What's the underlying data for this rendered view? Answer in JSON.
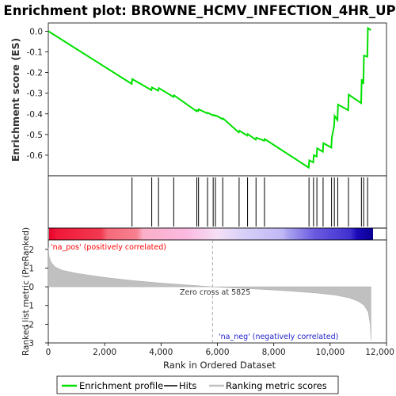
{
  "title": "Enrichment plot: BROWNE_HCMV_INFECTION_4HR_UP",
  "colors": {
    "es_line": "#00e000",
    "hit": "#000000",
    "metric_fill": "#c0c0c0",
    "pos_label": "#ff0000",
    "neg_label": "#0000cc",
    "zero_line": "#888888"
  },
  "chart_data": [
    {
      "type": "line",
      "name": "enrichment-profile",
      "ylabel": "Enrichment score (ES)",
      "xlim": [
        0,
        12000
      ],
      "ylim": [
        -0.7,
        0.04
      ],
      "yticks": [
        0.0,
        -0.1,
        -0.2,
        -0.3,
        -0.4,
        -0.5,
        -0.6
      ],
      "ytick_labels": [
        "0.0",
        "-0.1",
        "-0.2",
        "-0.3",
        "-0.4",
        "-0.5",
        "-0.6"
      ],
      "grid": false,
      "x": [
        0,
        2960,
        2980,
        3660,
        3680,
        3900,
        3920,
        4440,
        4460,
        5260,
        5280,
        5320,
        5340,
        5640,
        5660,
        5840,
        5860,
        5920,
        5940,
        6180,
        6200,
        6760,
        6780,
        7060,
        7080,
        7360,
        7380,
        7660,
        7680,
        9240,
        9260,
        9400,
        9420,
        9520,
        9540,
        9740,
        9760,
        10040,
        10060,
        10140,
        10160,
        10260,
        10280,
        10640,
        10660,
        11100,
        11120,
        11180,
        11200,
        11320,
        11340,
        11450
      ],
      "y": [
        0.0,
        -0.255,
        -0.232,
        -0.285,
        -0.272,
        -0.288,
        -0.275,
        -0.318,
        -0.31,
        -0.387,
        -0.382,
        -0.386,
        -0.378,
        -0.398,
        -0.395,
        -0.407,
        -0.405,
        -0.41,
        -0.407,
        -0.425,
        -0.422,
        -0.49,
        -0.482,
        -0.505,
        -0.498,
        -0.525,
        -0.515,
        -0.53,
        -0.522,
        -0.66,
        -0.625,
        -0.635,
        -0.6,
        -0.607,
        -0.567,
        -0.583,
        -0.542,
        -0.563,
        -0.515,
        -0.46,
        -0.41,
        -0.43,
        -0.355,
        -0.382,
        -0.307,
        -0.348,
        -0.233,
        -0.255,
        -0.118,
        -0.123,
        0.015,
        0.005
      ]
    },
    {
      "type": "scatter",
      "name": "hits",
      "x": [
        2970,
        3670,
        3910,
        4450,
        5270,
        5330,
        5650,
        5850,
        5930,
        6190,
        6770,
        7070,
        7370,
        7670,
        9250,
        9410,
        9530,
        9750,
        10050,
        10150,
        10270,
        10650,
        11110,
        11190,
        11330
      ]
    },
    {
      "type": "area",
      "name": "ranking-metric",
      "ylabel": "Ranked list metric (PreRanked)",
      "xlabel": "Rank in Ordered Dataset",
      "xlim": [
        0,
        12000
      ],
      "ylim": [
        -3,
        2.5
      ],
      "xticks": [
        0,
        2000,
        4000,
        6000,
        8000,
        10000,
        12000
      ],
      "xtick_labels": [
        "0",
        "2,000",
        "4,000",
        "6,000",
        "8,000",
        "10,000",
        "12,000"
      ],
      "yticks": [
        2,
        1,
        0,
        -1,
        -2,
        -3
      ],
      "ytick_labels": [
        "2",
        "1",
        "0",
        "-1",
        "-2",
        "-3"
      ],
      "x": [
        0,
        30,
        100,
        250,
        500,
        1000,
        2000,
        3000,
        4000,
        5000,
        5825,
        6500,
        7500,
        8500,
        9500,
        10200,
        10700,
        11000,
        11200,
        11350,
        11420,
        11450
      ],
      "y": [
        2.1,
        1.6,
        1.3,
        1.05,
        0.88,
        0.72,
        0.5,
        0.33,
        0.2,
        0.09,
        0.0,
        -0.06,
        -0.13,
        -0.22,
        -0.33,
        -0.45,
        -0.6,
        -0.78,
        -0.98,
        -1.35,
        -2.0,
        -2.85
      ],
      "zero_cross": 5825,
      "annotations": {
        "zero_cross": "Zero cross at 5825",
        "pos": "'na_pos' (positively correlated)",
        "neg": "'na_neg' (negatively correlated)"
      }
    }
  ],
  "legend": {
    "placement": "bottom",
    "items": [
      {
        "label": "Enrichment profile",
        "color": "#00e000"
      },
      {
        "label": "Hits",
        "color": "#000000"
      },
      {
        "label": "Ranking metric scores",
        "color": "#c0c0c0"
      }
    ]
  }
}
